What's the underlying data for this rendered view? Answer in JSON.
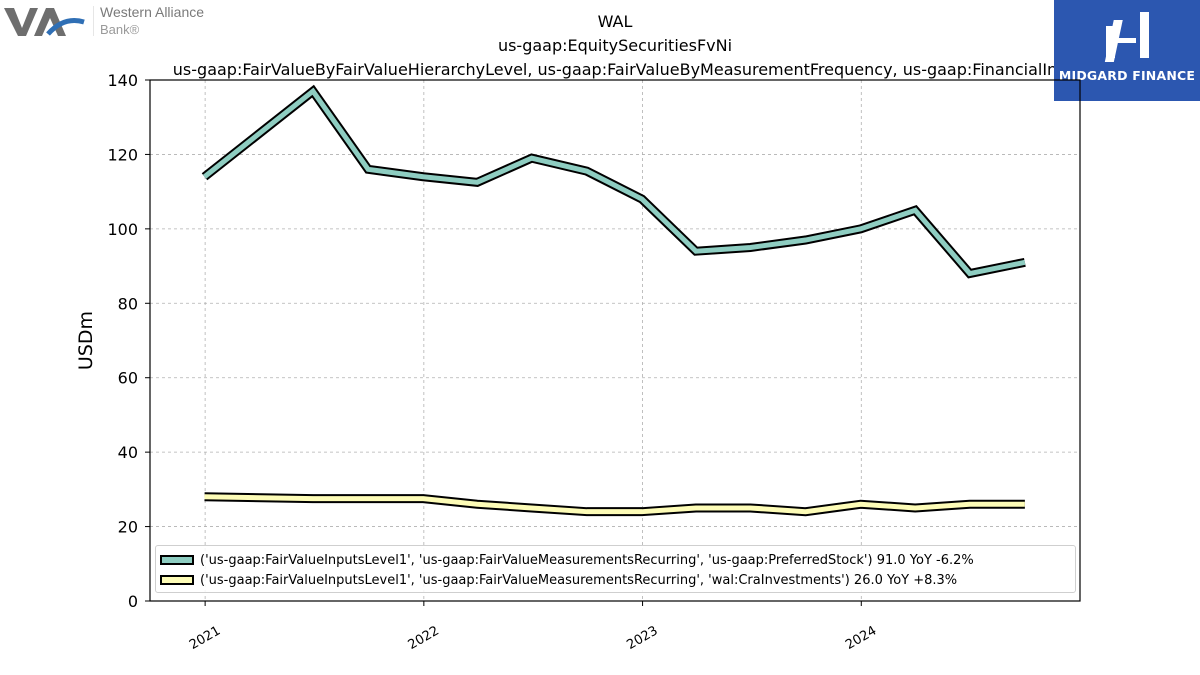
{
  "logos": {
    "left": {
      "name": "Western Alliance",
      "sub": "Bank®"
    },
    "right": {
      "name": "MIDGARD FINANCE"
    }
  },
  "title": {
    "line1": "WAL",
    "line2": "us-gaap:EquitySecuritiesFvNi",
    "line3": "us-gaap:FairValueByFairValueHierarchyLevel, us-gaap:FairValueByMeasurementFrequency, us-gaap:FinancialIn"
  },
  "colors": {
    "series1": "#8ecdc1",
    "series2": "#fdfcb7",
    "outline": "#000000",
    "grid": "#b0b0b0",
    "logo_bg": "#2c57b0"
  },
  "chart_data": {
    "type": "line",
    "ylabel": "USDm",
    "xlabel": "",
    "ylim": [
      0,
      140
    ],
    "yticks": [
      0,
      20,
      40,
      60,
      80,
      100,
      120,
      140
    ],
    "xticks": [
      "2021",
      "2022",
      "2023",
      "2024"
    ],
    "grid": true,
    "legend_position": "lower-left",
    "x": [
      "2020-12-31",
      "2021-06-30",
      "2021-09-30",
      "2021-12-31",
      "2022-03-31",
      "2022-06-30",
      "2022-09-30",
      "2022-12-31",
      "2023-03-31",
      "2023-06-30",
      "2023-09-30",
      "2023-12-31",
      "2024-03-31",
      "2024-06-30",
      "2024-09-30"
    ],
    "series": [
      {
        "name": "('us-gaap:FairValueInputsLevel1', 'us-gaap:FairValueMeasurementsRecurring', 'us-gaap:PreferredStock') 91.0 YoY -6.2%",
        "values": [
          114,
          137,
          116,
          114,
          112.5,
          119,
          115.5,
          108,
          94,
          95,
          97,
          100,
          105,
          88,
          91
        ]
      },
      {
        "name": "('us-gaap:FairValueInputsLevel1', 'us-gaap:FairValueMeasurementsRecurring', 'wal:CraInvestments') 26.0 YoY +8.3%",
        "values": [
          28,
          27.5,
          27.5,
          27.5,
          26,
          25,
          24,
          24,
          25,
          25,
          24,
          26,
          25,
          26,
          26
        ]
      }
    ]
  }
}
